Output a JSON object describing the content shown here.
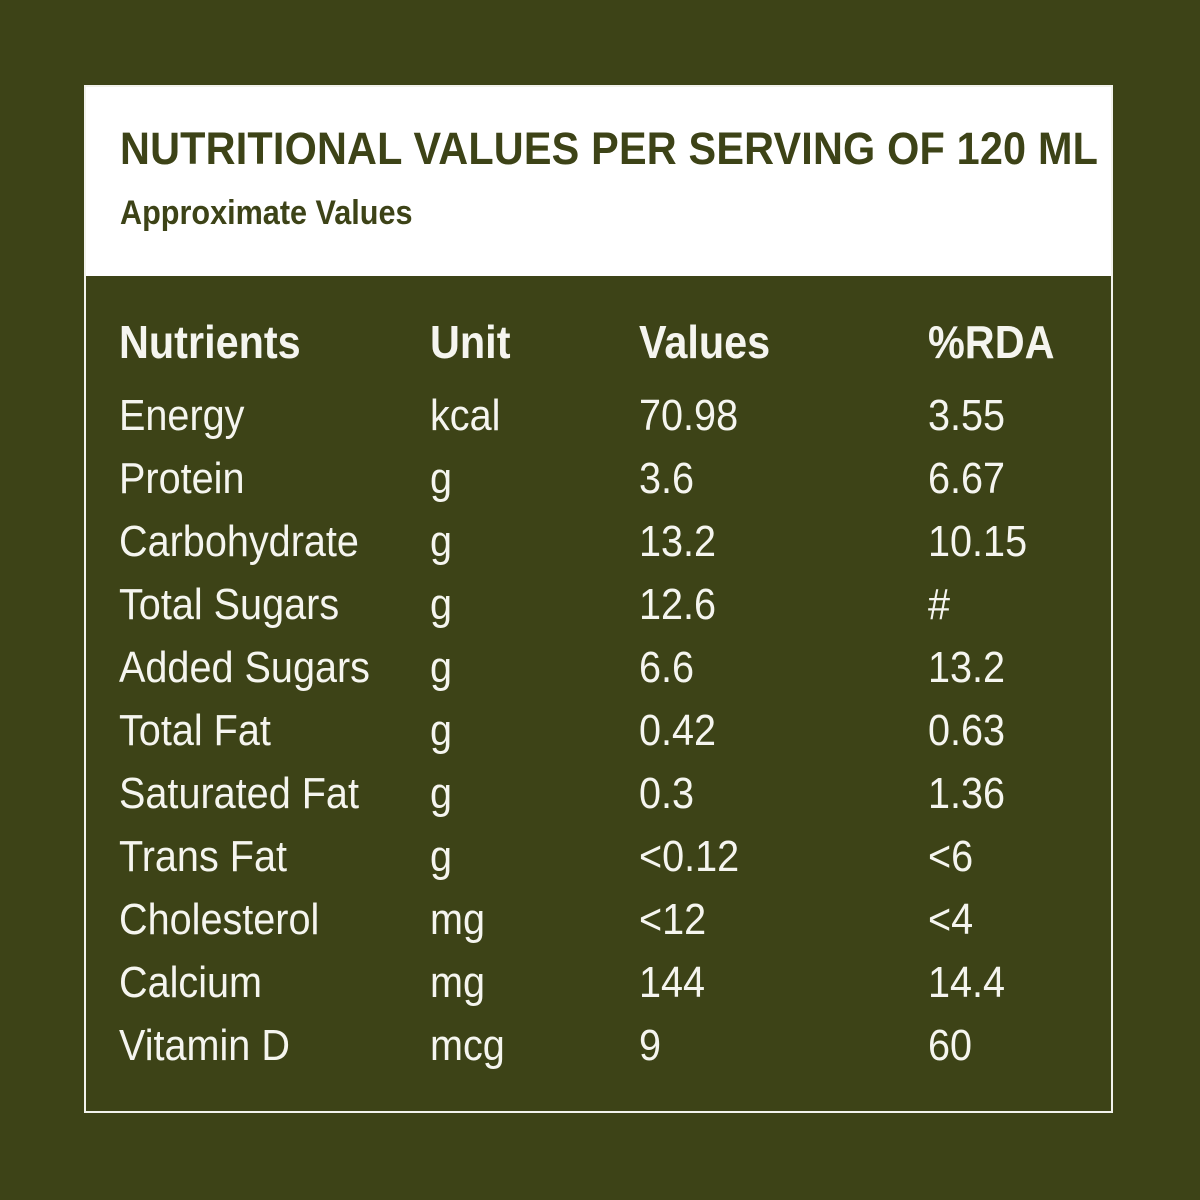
{
  "header": {
    "title": "NUTRITIONAL VALUES PER SERVING OF 120 ML",
    "subtitle": "Approximate Values"
  },
  "table": {
    "columns": [
      "Nutrients",
      "Unit",
      "Values",
      "%RDA"
    ],
    "rows": [
      [
        "Energy",
        "kcal",
        "70.98",
        "3.55"
      ],
      [
        "Protein",
        "g",
        "3.6",
        "6.67"
      ],
      [
        "Carbohydrate",
        "g",
        "13.2",
        "10.15"
      ],
      [
        "Total Sugars",
        "g",
        "12.6",
        "#"
      ],
      [
        "Added Sugars",
        "g",
        "6.6",
        "13.2"
      ],
      [
        "Total Fat",
        "g",
        "0.42",
        "0.63"
      ],
      [
        "Saturated Fat",
        "g",
        "0.3",
        "1.36"
      ],
      [
        "Trans Fat",
        "g",
        "<0.12",
        "<6"
      ],
      [
        "Cholesterol",
        "mg",
        "<12",
        "<4"
      ],
      [
        "Calcium",
        "mg",
        "144",
        "14.4"
      ],
      [
        "Vitamin D",
        "mcg",
        "9",
        "60"
      ]
    ]
  },
  "colors": {
    "background": "#3d4317",
    "panel_border": "#f2f2ec",
    "header_background": "#ffffff",
    "text_light": "#f5f5ef"
  }
}
